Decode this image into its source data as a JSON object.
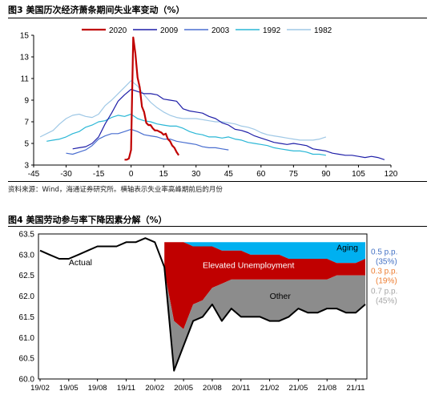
{
  "fig3": {
    "title": "图3  美国历次经济萧条期间失业率变动（%）",
    "source": "资料来源：Wind，海通证券研究所。横轴表示失业率高峰期前后的月份"
  },
  "fig4": {
    "title": "图4  美国劳动参与率下降因素分解（%）"
  },
  "chart_data": [
    {
      "type": "line",
      "title": "美国历次经济萧条期间失业率变动（%）",
      "xlabel": "",
      "ylabel": "",
      "xlim": [
        -45,
        120
      ],
      "ylim": [
        3,
        15
      ],
      "x_ticks": [
        -45,
        -30,
        -15,
        0,
        15,
        30,
        45,
        60,
        75,
        90,
        105,
        120
      ],
      "y_ticks": [
        3,
        5,
        7,
        9,
        11,
        13,
        15
      ],
      "grid": false,
      "legend": "top",
      "series": [
        {
          "name": "2020",
          "color": "#c00000",
          "points": [
            [
              -3,
              3.5
            ],
            [
              -2,
              3.5
            ],
            [
              -1,
              3.6
            ],
            [
              0,
              4.4
            ],
            [
              1,
              14.8
            ],
            [
              2,
              13.3
            ],
            [
              3,
              11.1
            ],
            [
              4,
              10.2
            ],
            [
              5,
              8.4
            ],
            [
              6,
              7.9
            ],
            [
              7,
              6.9
            ],
            [
              8,
              6.7
            ],
            [
              9,
              6.7
            ],
            [
              10,
              6.4
            ],
            [
              11,
              6.2
            ],
            [
              12,
              6.2
            ],
            [
              13,
              6.1
            ],
            [
              14,
              6.0
            ],
            [
              15,
              5.8
            ],
            [
              16,
              5.9
            ],
            [
              17,
              5.4
            ],
            [
              18,
              5.2
            ],
            [
              19,
              4.8
            ],
            [
              20,
              4.6
            ],
            [
              21,
              4.2
            ],
            [
              22,
              3.9
            ]
          ]
        },
        {
          "name": "2009",
          "color": "#1f1fa8",
          "points": [
            [
              -27,
              4.5
            ],
            [
              -24,
              4.6
            ],
            [
              -21,
              4.7
            ],
            [
              -18,
              5.0
            ],
            [
              -15,
              5.6
            ],
            [
              -12,
              6.8
            ],
            [
              -9,
              7.8
            ],
            [
              -6,
              8.9
            ],
            [
              -3,
              9.5
            ],
            [
              0,
              10.0
            ],
            [
              3,
              9.8
            ],
            [
              6,
              9.6
            ],
            [
              9,
              9.6
            ],
            [
              12,
              9.5
            ],
            [
              15,
              9.1
            ],
            [
              18,
              9.0
            ],
            [
              21,
              8.9
            ],
            [
              24,
              8.2
            ],
            [
              27,
              8.0
            ],
            [
              30,
              7.9
            ],
            [
              33,
              7.8
            ],
            [
              36,
              7.5
            ],
            [
              39,
              7.3
            ],
            [
              42,
              6.9
            ],
            [
              45,
              6.7
            ],
            [
              48,
              6.3
            ],
            [
              51,
              6.2
            ],
            [
              54,
              6.0
            ],
            [
              57,
              5.7
            ],
            [
              60,
              5.5
            ],
            [
              63,
              5.3
            ],
            [
              66,
              5.1
            ],
            [
              69,
              5.0
            ],
            [
              72,
              4.9
            ],
            [
              75,
              5.0
            ],
            [
              78,
              4.9
            ],
            [
              81,
              4.8
            ],
            [
              84,
              4.5
            ],
            [
              87,
              4.4
            ],
            [
              90,
              4.3
            ],
            [
              93,
              4.1
            ],
            [
              96,
              4.0
            ],
            [
              99,
              3.9
            ],
            [
              102,
              3.9
            ],
            [
              105,
              3.8
            ],
            [
              108,
              3.7
            ],
            [
              111,
              3.8
            ],
            [
              114,
              3.7
            ],
            [
              117,
              3.5
            ]
          ]
        },
        {
          "name": "2003",
          "color": "#4a6fd0",
          "points": [
            [
              -30,
              4.1
            ],
            [
              -27,
              4.0
            ],
            [
              -24,
              4.2
            ],
            [
              -21,
              4.4
            ],
            [
              -18,
              4.8
            ],
            [
              -15,
              5.4
            ],
            [
              -12,
              5.7
            ],
            [
              -9,
              5.9
            ],
            [
              -6,
              5.9
            ],
            [
              -3,
              6.1
            ],
            [
              0,
              6.3
            ],
            [
              3,
              6.1
            ],
            [
              6,
              5.8
            ],
            [
              9,
              5.7
            ],
            [
              12,
              5.6
            ],
            [
              15,
              5.4
            ],
            [
              18,
              5.4
            ],
            [
              21,
              5.2
            ],
            [
              24,
              5.1
            ],
            [
              27,
              5.0
            ],
            [
              30,
              4.9
            ],
            [
              33,
              4.7
            ],
            [
              36,
              4.6
            ],
            [
              39,
              4.6
            ],
            [
              42,
              4.5
            ],
            [
              45,
              4.4
            ]
          ]
        },
        {
          "name": "1992",
          "color": "#2ab7d6",
          "points": [
            [
              -39,
              5.2
            ],
            [
              -36,
              5.3
            ],
            [
              -33,
              5.4
            ],
            [
              -30,
              5.6
            ],
            [
              -27,
              5.9
            ],
            [
              -24,
              6.1
            ],
            [
              -21,
              6.5
            ],
            [
              -18,
              6.7
            ],
            [
              -15,
              7.0
            ],
            [
              -12,
              7.1
            ],
            [
              -9,
              7.4
            ],
            [
              -6,
              7.6
            ],
            [
              -3,
              7.5
            ],
            [
              0,
              7.7
            ],
            [
              3,
              7.3
            ],
            [
              6,
              7.1
            ],
            [
              9,
              7.0
            ],
            [
              12,
              6.8
            ],
            [
              15,
              6.7
            ],
            [
              18,
              6.6
            ],
            [
              21,
              6.6
            ],
            [
              24,
              6.4
            ],
            [
              27,
              6.1
            ],
            [
              30,
              5.9
            ],
            [
              33,
              5.8
            ],
            [
              36,
              5.6
            ],
            [
              39,
              5.6
            ],
            [
              42,
              5.5
            ],
            [
              45,
              5.6
            ],
            [
              48,
              5.4
            ],
            [
              51,
              5.3
            ],
            [
              54,
              5.1
            ],
            [
              57,
              5.0
            ],
            [
              60,
              4.9
            ],
            [
              63,
              4.8
            ],
            [
              66,
              4.6
            ],
            [
              69,
              4.5
            ],
            [
              72,
              4.4
            ],
            [
              75,
              4.3
            ],
            [
              78,
              4.3
            ],
            [
              81,
              4.2
            ],
            [
              84,
              4.0
            ],
            [
              87,
              4.0
            ],
            [
              90,
              3.9
            ]
          ]
        },
        {
          "name": "1982",
          "color": "#9fc8e6",
          "points": [
            [
              -42,
              5.6
            ],
            [
              -39,
              5.9
            ],
            [
              -36,
              6.2
            ],
            [
              -33,
              6.8
            ],
            [
              -30,
              7.3
            ],
            [
              -27,
              7.6
            ],
            [
              -24,
              7.7
            ],
            [
              -21,
              7.5
            ],
            [
              -18,
              7.4
            ],
            [
              -15,
              7.7
            ],
            [
              -12,
              8.5
            ],
            [
              -9,
              9.0
            ],
            [
              -6,
              9.6
            ],
            [
              -3,
              10.2
            ],
            [
              0,
              10.8
            ],
            [
              3,
              10.3
            ],
            [
              6,
              9.5
            ],
            [
              9,
              8.8
            ],
            [
              12,
              8.3
            ],
            [
              15,
              7.9
            ],
            [
              18,
              7.6
            ],
            [
              21,
              7.4
            ],
            [
              24,
              7.3
            ],
            [
              27,
              7.3
            ],
            [
              30,
              7.3
            ],
            [
              33,
              7.2
            ],
            [
              36,
              7.1
            ],
            [
              39,
              7.0
            ],
            [
              42,
              7.0
            ],
            [
              45,
              6.9
            ],
            [
              48,
              6.8
            ],
            [
              51,
              6.6
            ],
            [
              54,
              6.5
            ],
            [
              57,
              6.3
            ],
            [
              60,
              6.0
            ],
            [
              63,
              5.8
            ],
            [
              66,
              5.7
            ],
            [
              69,
              5.6
            ],
            [
              72,
              5.5
            ],
            [
              75,
              5.4
            ],
            [
              78,
              5.3
            ],
            [
              81,
              5.3
            ],
            [
              84,
              5.3
            ],
            [
              87,
              5.4
            ],
            [
              90,
              5.6
            ]
          ]
        }
      ]
    },
    {
      "type": "area",
      "title": "美国劳动参与率下降因素分解（%）",
      "xlabel": "",
      "ylabel": "",
      "ylim": [
        60.0,
        63.5
      ],
      "y_ticks": [
        "60.0",
        "60.5",
        "61.0",
        "61.5",
        "62.0",
        "62.5",
        "63.0",
        "63.5"
      ],
      "x_tick_labels": [
        "19/02",
        "19/05",
        "19/08",
        "19/11",
        "20/02",
        "20/05",
        "20/08",
        "20/11",
        "21/02",
        "21/05",
        "21/08",
        "21/11"
      ],
      "months_per_tick": 3,
      "grid": false,
      "legend": "inline",
      "actual": {
        "name": "Actual",
        "values": [
          63.1,
          63.0,
          62.9,
          62.9,
          63.0,
          63.1,
          63.2,
          63.2,
          63.2,
          63.3,
          63.3,
          63.4,
          63.3,
          62.7,
          60.2,
          60.8,
          61.4,
          61.5,
          61.8,
          61.4,
          61.7,
          61.5,
          61.5,
          61.5,
          61.4,
          61.4,
          61.5,
          61.7,
          61.6,
          61.6,
          61.7,
          61.7,
          61.6,
          61.6,
          61.8
        ]
      },
      "other_top": [
        62.6,
        61.4,
        61.2,
        61.8,
        61.9,
        62.2,
        62.3,
        62.4,
        62.4,
        62.4,
        62.4,
        62.4,
        62.4,
        62.4,
        62.4,
        62.4,
        62.4,
        62.4,
        62.5,
        62.5,
        62.5,
        62.5
      ],
      "elevated_top": [
        63.3,
        63.3,
        63.3,
        63.2,
        63.2,
        63.2,
        63.1,
        63.1,
        63.1,
        63.0,
        63.0,
        63.0,
        63.0,
        62.9,
        62.9,
        62.9,
        62.9,
        62.9,
        62.8,
        62.8,
        62.8,
        62.9
      ],
      "aging_top": [
        63.3,
        63.3,
        63.3,
        63.3,
        63.3,
        63.3,
        63.3,
        63.3,
        63.3,
        63.3,
        63.3,
        63.3,
        63.3,
        63.3,
        63.3,
        63.3,
        63.3,
        63.3,
        63.3,
        63.3,
        63.3,
        63.3
      ],
      "area_start_index": 13,
      "areas": [
        {
          "name": "Aging",
          "color": "#00b0f0"
        },
        {
          "name": "Elevated Unemployment",
          "color": "#c00000"
        },
        {
          "name": "Other",
          "color": "#8c8c8c"
        }
      ],
      "annotations": [
        {
          "text": "0.5 p.p.",
          "sub": "(35%)",
          "color": "#4472c4"
        },
        {
          "text": "0.3 p.p.",
          "sub": "(19%)",
          "color": "#ed7d31"
        },
        {
          "text": "0.7 p.p.",
          "sub": "(45%)",
          "color": "#a6a6a6"
        }
      ]
    }
  ]
}
